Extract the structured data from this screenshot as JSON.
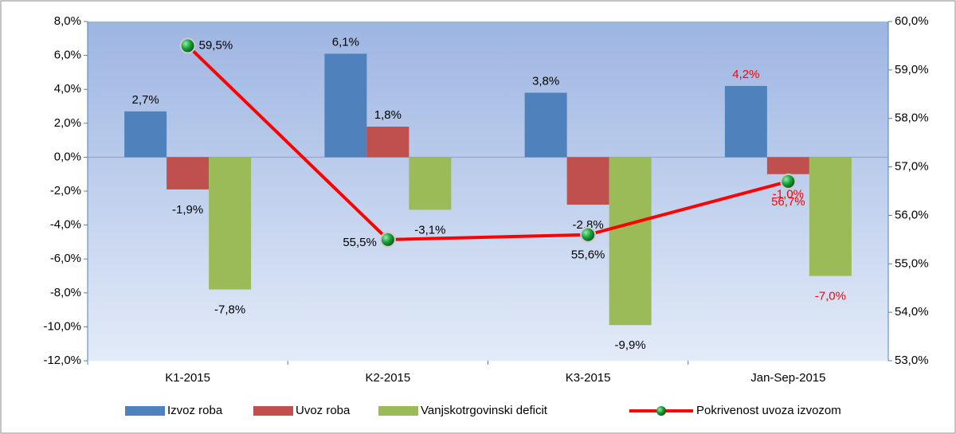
{
  "chart_data": {
    "type": "bar",
    "categories": [
      "K1-2015",
      "K2-2015",
      "K3-2015",
      "Jan-Sep-2015"
    ],
    "series": [
      {
        "name": "Izvoz roba",
        "color": "#4f81bd",
        "values": [
          2.7,
          6.1,
          3.8,
          4.2
        ],
        "value_labels": [
          "2,7%",
          "6,1%",
          "3,8%",
          "4,2%"
        ]
      },
      {
        "name": "Uvoz roba",
        "color": "#c0504d",
        "values": [
          -1.9,
          1.8,
          -2.8,
          -1.0
        ],
        "value_labels": [
          "-1,9%",
          "1,8%",
          "-2,8%",
          "-1,0%"
        ]
      },
      {
        "name": "Vanjskotrgovinski deficit",
        "color": "#9bbb59",
        "values": [
          -7.8,
          -3.1,
          -9.9,
          -7.0
        ],
        "value_labels": [
          "-7,8%",
          "-3,1%",
          "-9,9%",
          "-7,0%"
        ]
      },
      {
        "name": "Pokrivenost uvoza izvozom",
        "type": "line",
        "axis": "y2",
        "color": "#ff0000",
        "marker_color": "#1a9e3a",
        "values": [
          59.5,
          55.5,
          55.6,
          56.7
        ],
        "value_labels": [
          "59,5%",
          "55,5%",
          "55,6%",
          "56,7%"
        ]
      }
    ],
    "label_colors": [
      "#000000",
      "#000000",
      "#000000",
      "#ff0000"
    ],
    "ylim": [
      -12,
      8
    ],
    "yticks": [
      {
        "value": -12,
        "label": "-12,0%"
      },
      {
        "value": -10,
        "label": "-10,0%"
      },
      {
        "value": -8,
        "label": "-8,0%"
      },
      {
        "value": -6,
        "label": "-6,0%"
      },
      {
        "value": -4,
        "label": "-4,0%"
      },
      {
        "value": -2,
        "label": "-2,0%"
      },
      {
        "value": 0,
        "label": "0,0%"
      },
      {
        "value": 2,
        "label": "2,0%"
      },
      {
        "value": 4,
        "label": "4,0%"
      },
      {
        "value": 6,
        "label": "6,0%"
      },
      {
        "value": 8,
        "label": "8,0%"
      }
    ],
    "y2lim": [
      53,
      60
    ],
    "y2ticks": [
      {
        "value": 53,
        "label": "53,0%"
      },
      {
        "value": 54,
        "label": "54,0%"
      },
      {
        "value": 55,
        "label": "55,0%"
      },
      {
        "value": 56,
        "label": "56,0%"
      },
      {
        "value": 57,
        "label": "57,0%"
      },
      {
        "value": 58,
        "label": "58,0%"
      },
      {
        "value": 59,
        "label": "59,0%"
      },
      {
        "value": 60,
        "label": "60,0%"
      }
    ],
    "legend": "bottom"
  }
}
